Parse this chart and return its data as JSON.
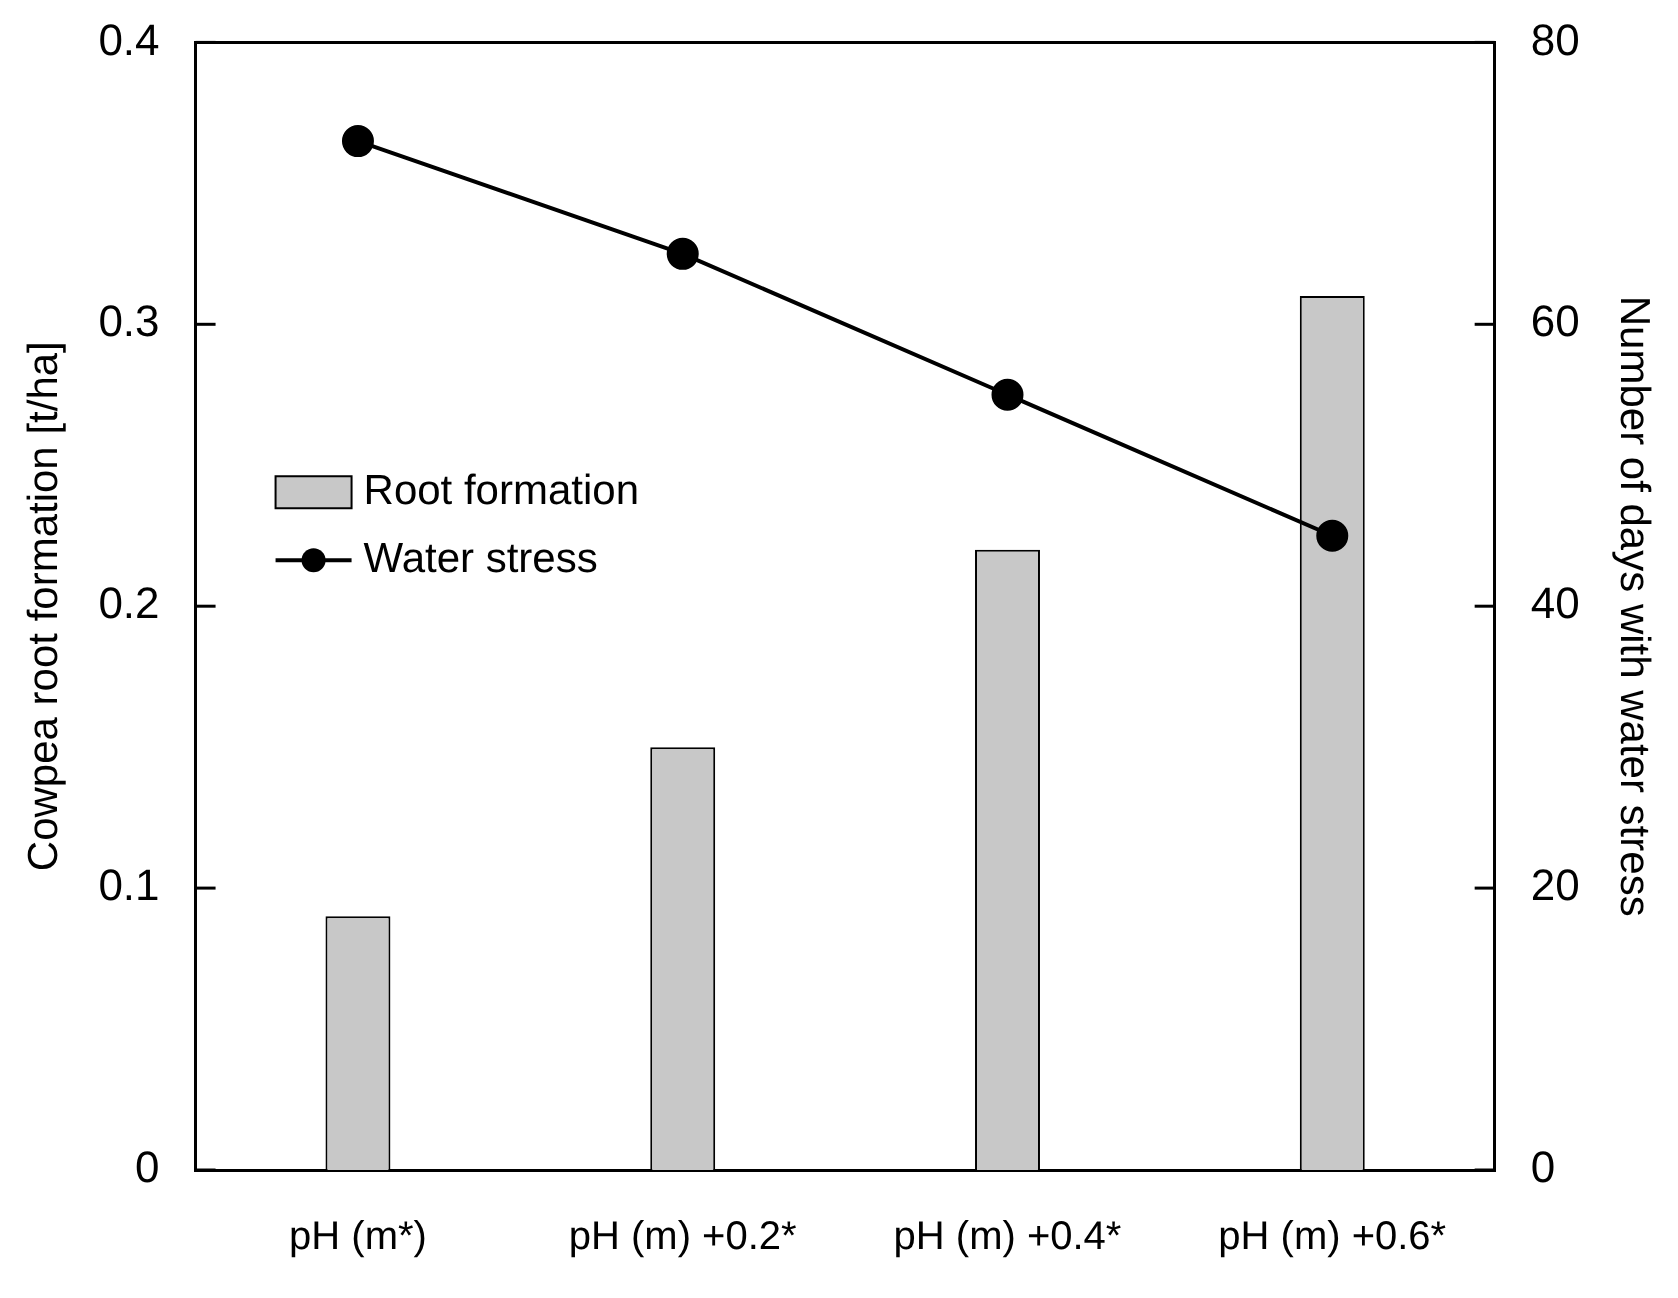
{
  "chart_data": {
    "type": "bar",
    "categories": [
      "pH (m*)",
      "pH (m) +0.2*",
      "pH (m) +0.4*",
      "pH (m) +0.6*"
    ],
    "ylabel": "Cowpea root formation [t/ha]",
    "y2label": "Number of days with water stress",
    "ylim": [
      0,
      0.4
    ],
    "yticks": [
      0,
      0.1,
      0.2,
      0.3,
      0.4
    ],
    "y2lim": [
      0,
      80
    ],
    "y2ticks": [
      0,
      20,
      40,
      60,
      80
    ],
    "legend": "left",
    "marker": "circle",
    "line_style": "solid",
    "series": [
      {
        "name": "Root formation",
        "color": "#c8c8c8",
        "values": [
          0.09,
          0.15,
          0.22,
          0.31
        ]
      },
      {
        "name": "Water stress",
        "type": "line",
        "axis": "y2",
        "color": "#000000",
        "values": [
          73,
          65,
          55,
          45
        ]
      }
    ]
  }
}
